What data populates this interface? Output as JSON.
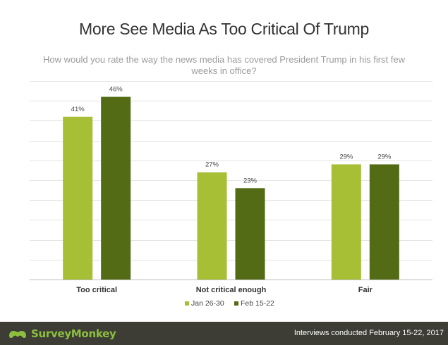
{
  "title": "More See Media As Too Critical Of Trump",
  "subtitle": "How would you rate the way the news media has covered President Trump in his first few weeks in office?",
  "colors": {
    "series1": "#a6bf35",
    "series2": "#526b14",
    "grid": "#e3e3e3",
    "footer_bg": "#3d3d35",
    "brand": "#8cbf3f"
  },
  "chart_data": {
    "type": "bar",
    "categories": [
      "Too critical",
      "Not critical enough",
      "Fair"
    ],
    "series": [
      {
        "name": "Jan 26-30",
        "values": [
          41,
          27,
          29
        ],
        "labels": [
          "41%",
          "27%",
          "29%"
        ],
        "color": "#a6bf35"
      },
      {
        "name": "Feb 15-22",
        "values": [
          46,
          23,
          29
        ],
        "labels": [
          "46%",
          "23%",
          "29%"
        ],
        "color": "#526b14"
      }
    ],
    "ylim": [
      0,
      50
    ],
    "grid": true,
    "legend": "bottom-center",
    "xlabel": "",
    "ylabel": ""
  },
  "footer": {
    "brand": "SurveyMonkey",
    "brand_icon": "surveymonkey-logo-icon",
    "source": "Interviews conducted February 15-22, 2017"
  }
}
